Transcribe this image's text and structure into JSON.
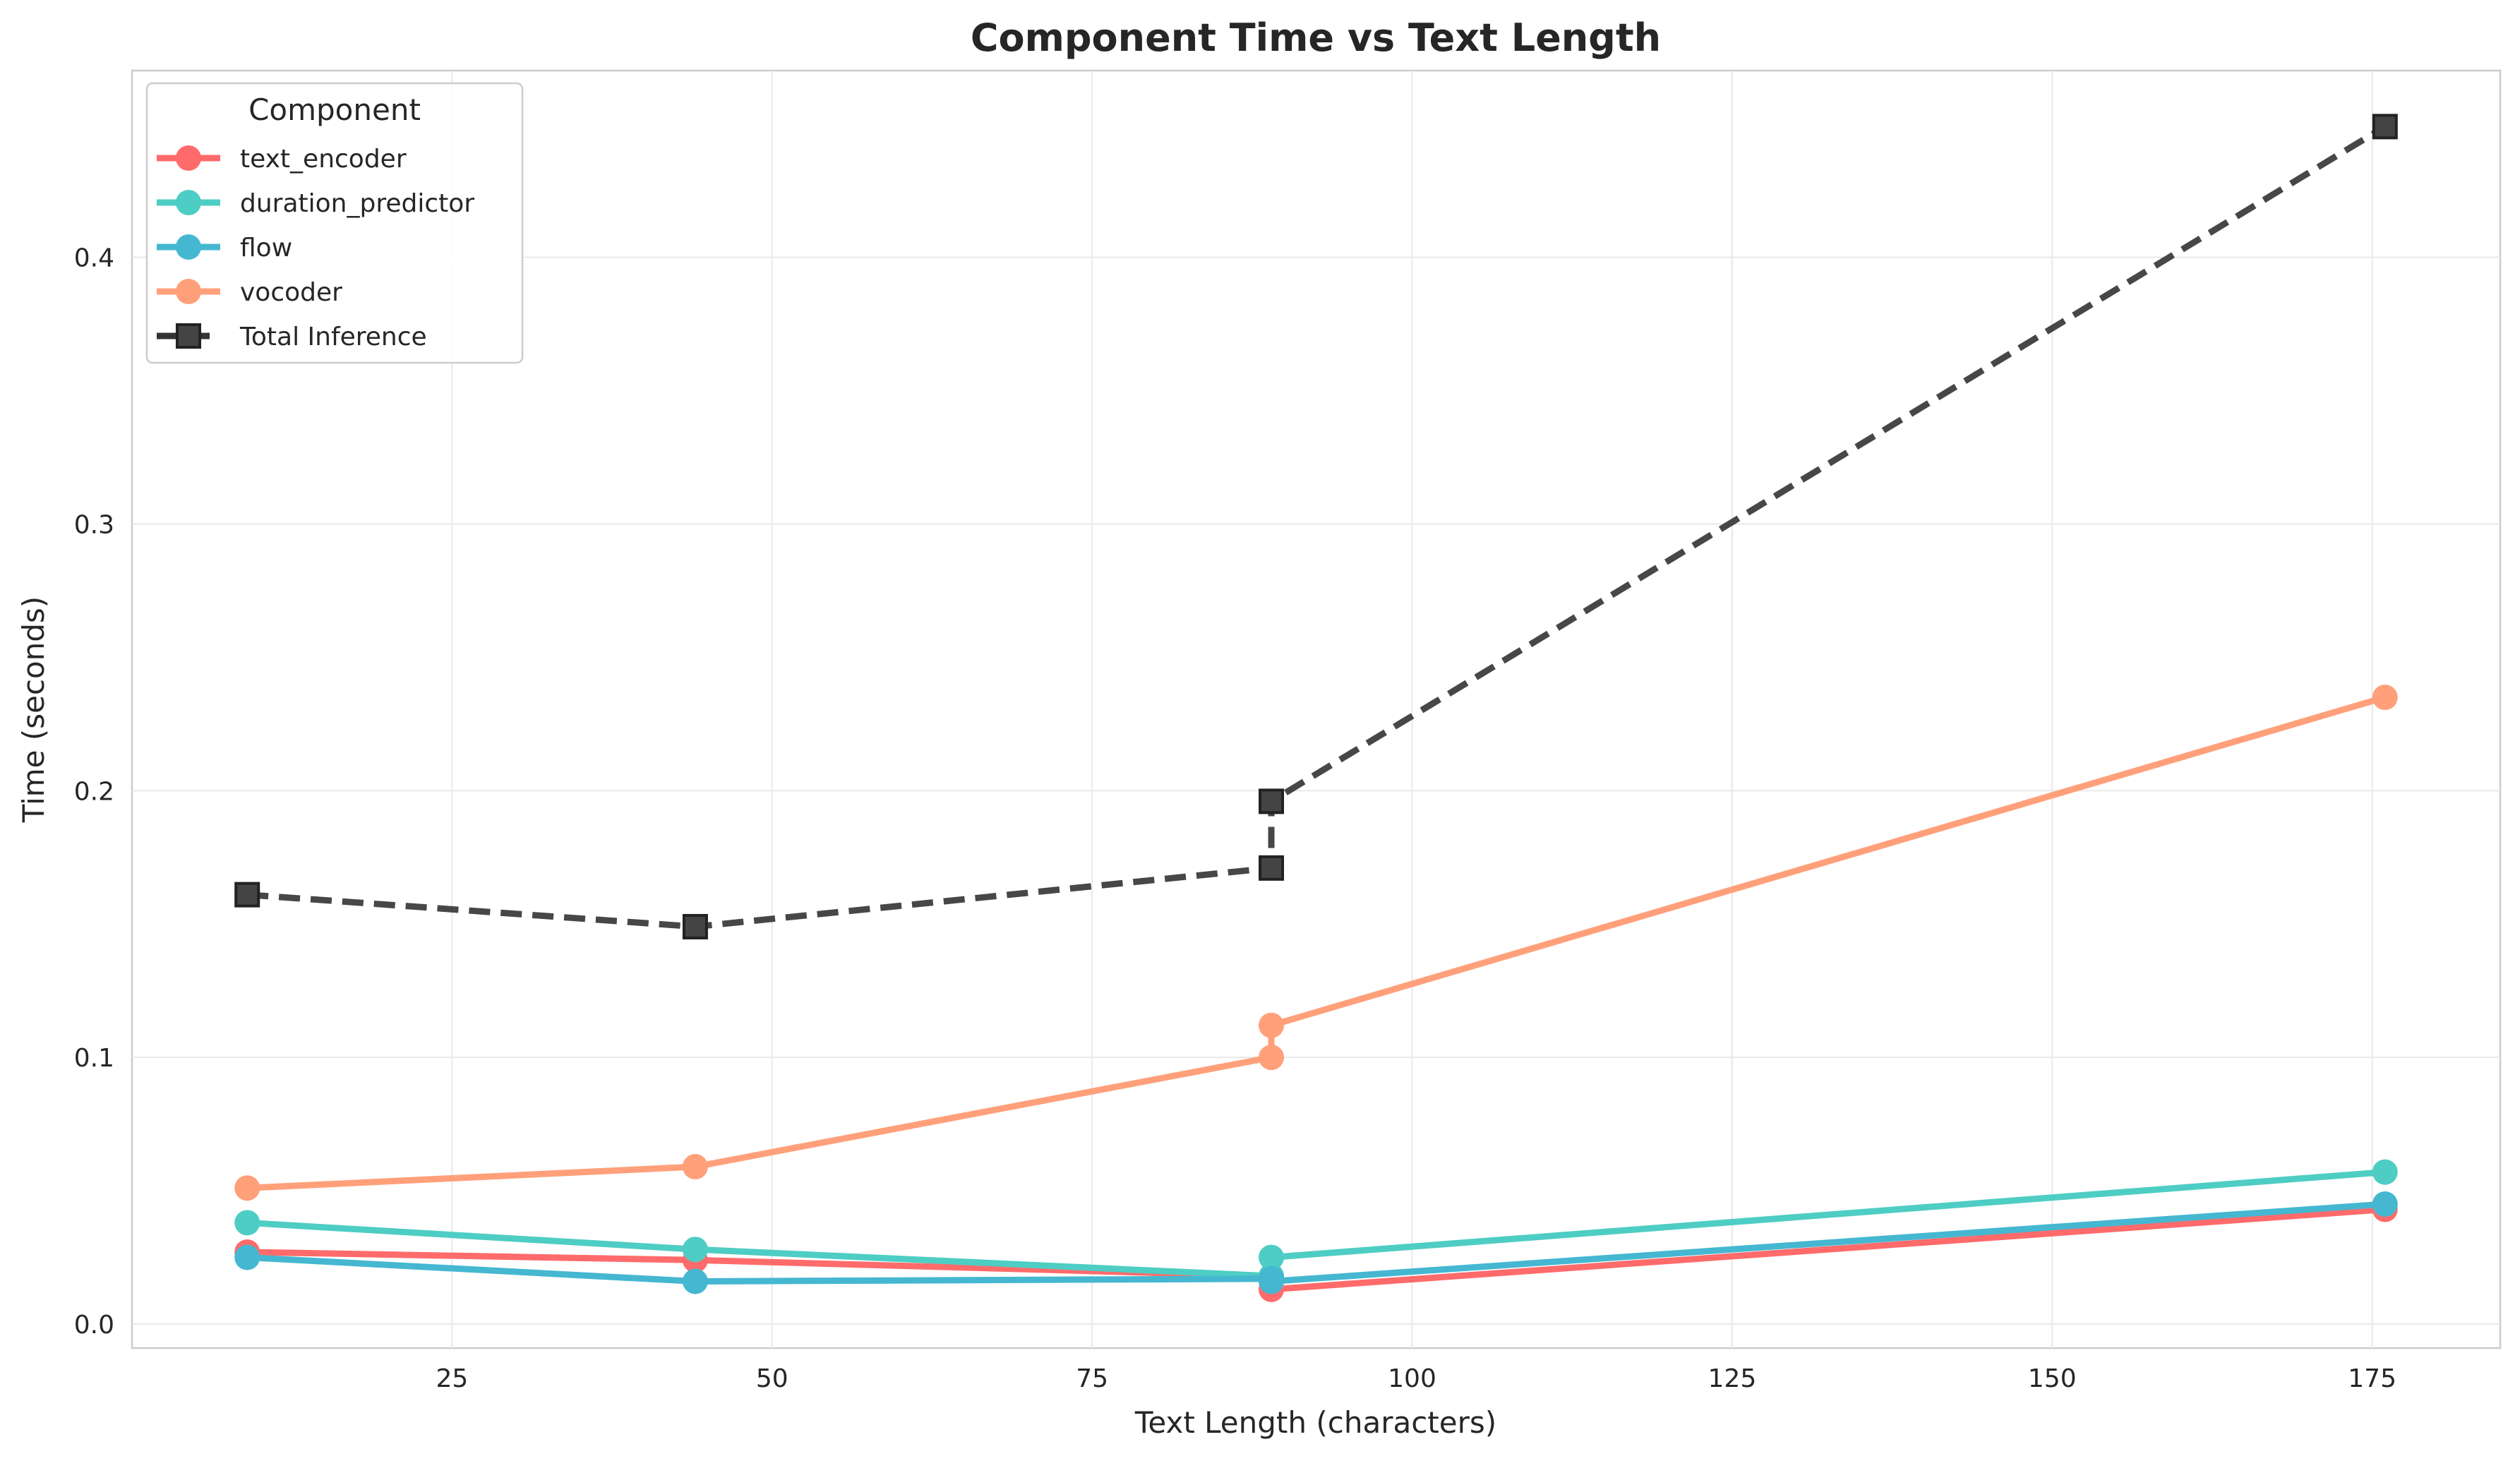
{
  "chart_data": {
    "type": "line",
    "title": "Component Time vs Text Length",
    "xlabel": "Text Length (characters)",
    "ylabel": "Time (seconds)",
    "xlim": [
      0,
      185
    ],
    "ylim": [
      -0.009,
      0.47
    ],
    "xticks": [
      25,
      50,
      75,
      100,
      125,
      150,
      175
    ],
    "yticks": [
      0.0,
      0.1,
      0.2,
      0.3,
      0.4
    ],
    "xtick_labels": [
      "25",
      "50",
      "75",
      "100",
      "125",
      "150",
      "175"
    ],
    "ytick_labels": [
      "0.0",
      "0.1",
      "0.2",
      "0.3",
      "0.4"
    ],
    "grid": true,
    "legend": {
      "title": "Component",
      "position": "top-left"
    },
    "series": [
      {
        "name": "text_encoder",
        "color": "#FF6B6B",
        "marker": "circle",
        "dash": false,
        "x": [
          9,
          44,
          89,
          89,
          176
        ],
        "y": [
          0.027,
          0.024,
          0.018,
          0.013,
          0.043
        ]
      },
      {
        "name": "duration_predictor",
        "color": "#4ECDC4",
        "marker": "circle",
        "dash": false,
        "x": [
          9,
          44,
          89,
          89,
          176
        ],
        "y": [
          0.038,
          0.028,
          0.018,
          0.025,
          0.057
        ]
      },
      {
        "name": "flow",
        "color": "#45B7D1",
        "marker": "circle",
        "dash": false,
        "x": [
          9,
          44,
          89,
          89,
          176
        ],
        "y": [
          0.025,
          0.016,
          0.017,
          0.016,
          0.045
        ]
      },
      {
        "name": "vocoder",
        "color": "#FFA07A",
        "marker": "circle",
        "dash": false,
        "x": [
          9,
          44,
          89,
          89,
          176
        ],
        "y": [
          0.051,
          0.059,
          0.1,
          0.112,
          0.235
        ]
      },
      {
        "name": "Total Inference",
        "color": "#333333",
        "marker": "square",
        "dash": true,
        "x": [
          9,
          44,
          89,
          89,
          176
        ],
        "y": [
          0.161,
          0.149,
          0.171,
          0.196,
          0.449
        ]
      }
    ]
  }
}
